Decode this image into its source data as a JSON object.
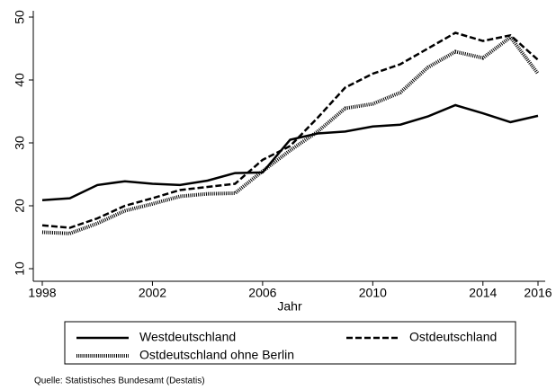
{
  "chart_data": {
    "type": "line",
    "x_label": "Jahr",
    "note": "Quelle: Statistisches Bundesamt (Destatis)",
    "x": [
      1998,
      1999,
      2000,
      2001,
      2002,
      2003,
      2004,
      2005,
      2006,
      2007,
      2008,
      2009,
      2010,
      2011,
      2012,
      2013,
      2014,
      2015,
      2016
    ],
    "xlim": [
      1998,
      2016
    ],
    "xticks": [
      1998,
      2002,
      2006,
      2010,
      2014,
      2016
    ],
    "ylim": [
      10,
      50
    ],
    "yticks": [
      10,
      20,
      30,
      40,
      50
    ],
    "series": [
      {
        "name": "Westdeutschland",
        "color": "#000000",
        "dash": "solid",
        "values": [
          20.9,
          21.2,
          23.3,
          23.9,
          23.5,
          23.3,
          24.0,
          25.2,
          25.3,
          30.5,
          31.5,
          31.8,
          32.6,
          32.9,
          34.2,
          36.0,
          34.7,
          33.3,
          34.3
        ]
      },
      {
        "name": "Ostdeutschland",
        "color": "#000000",
        "dash": "dash",
        "values": [
          16.9,
          16.5,
          18.0,
          20.0,
          21.2,
          22.5,
          23.0,
          23.5,
          27.3,
          29.5,
          34.0,
          38.8,
          41.0,
          42.5,
          45.0,
          47.5,
          46.2,
          47.1,
          43.2
        ]
      },
      {
        "name": "Ostdeutschland ohne Berlin",
        "color": "#000000",
        "dash": "dot",
        "values": [
          15.8,
          15.6,
          17.2,
          19.2,
          20.3,
          21.5,
          21.9,
          22.0,
          25.5,
          28.8,
          31.8,
          35.5,
          36.2,
          38.0,
          42.0,
          44.5,
          43.5,
          46.8,
          41.0
        ]
      }
    ]
  }
}
